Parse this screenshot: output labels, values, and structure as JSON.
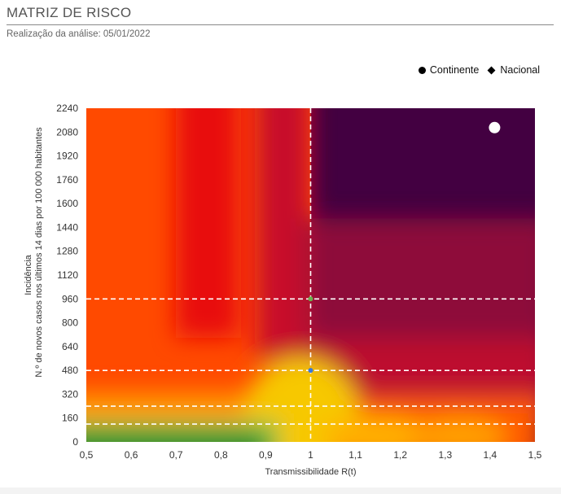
{
  "header": {
    "title": "MATRIZ DE RISCO",
    "subtitle": "Realização da análise: 05/01/2022"
  },
  "legend": {
    "items": [
      {
        "label": "Continente",
        "marker": "circle"
      },
      {
        "label": "Nacional",
        "marker": "diamond"
      }
    ]
  },
  "chart_data": {
    "type": "scatter",
    "title": "MATRIZ DE RISCO",
    "subtitle": "Realização da análise: 05/01/2022",
    "xlabel": "Transmissibilidade R(t)",
    "ylabel_line1": "Incidência",
    "ylabel_line2": "N.º de novos casos nos últimos 14 dias por 100 000 habitantes",
    "xlim": [
      0.5,
      1.5
    ],
    "ylim": [
      0,
      2240
    ],
    "x_ticks": [
      "0,5",
      "0,6",
      "0,7",
      "0,8",
      "0,9",
      "1",
      "1,1",
      "1,2",
      "1,3",
      "1,4",
      "1,5"
    ],
    "y_ticks": [
      "0",
      "160",
      "320",
      "480",
      "640",
      "800",
      "960",
      "1120",
      "1280",
      "1440",
      "1600",
      "1760",
      "1920",
      "2080",
      "2240"
    ],
    "reference_lines": {
      "vertical_x": [
        1
      ],
      "horizontal_y": [
        120,
        240,
        480,
        960
      ],
      "style": "dashed white"
    },
    "background": "risk heatmap: green (low Rt, low incidence) through yellow, orange, red to dark purple (high Rt, high incidence)",
    "series": [
      {
        "name": "Continente",
        "marker": "circle",
        "points": [
          {
            "x": 1.41,
            "y": 2110
          }
        ]
      }
    ],
    "legend_position": "top-right",
    "colors": {
      "green": "#1f8f2e",
      "yellow": "#f7c800",
      "orange": "#ff4a00",
      "red": "#e81010",
      "maroon": "#9b0d3a",
      "purple": "#430041",
      "marker_green": "#6ab04c",
      "marker_blue": "#3b78d8"
    }
  }
}
